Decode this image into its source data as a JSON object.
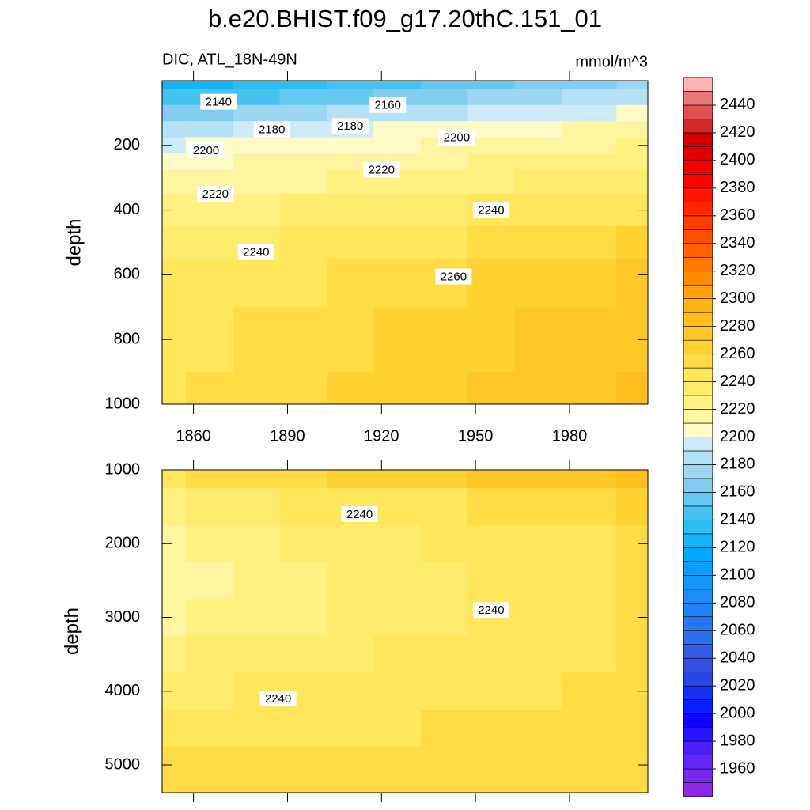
{
  "chart_data": [
    {
      "type": "contour",
      "title": "b.e20.BHIST.f09_g17.20thC.151_01",
      "subtitle_left": "DIC, ATL_18N-49N",
      "subtitle_right": "mmol/m^3",
      "ylabel": "depth",
      "y_reversed": true,
      "xlim": [
        1850,
        2005
      ],
      "ylim": [
        0,
        1000
      ],
      "xticks": [
        1860,
        1890,
        1920,
        1950,
        1980
      ],
      "yticks": [
        200,
        400,
        600,
        800,
        1000
      ],
      "x": [
        1850,
        1865,
        1880,
        1895,
        1910,
        1925,
        1940,
        1955,
        1970,
        1985,
        2005
      ],
      "y": [
        0,
        50,
        100,
        150,
        200,
        250,
        300,
        400,
        500,
        600,
        800,
        1000
      ],
      "z": [
        [
          2120,
          2125,
          2131,
          2136,
          2141,
          2146,
          2152,
          2157,
          2162,
          2167,
          2174
        ],
        [
          2140,
          2145,
          2149,
          2154,
          2158,
          2163,
          2167,
          2172,
          2176,
          2181,
          2187
        ],
        [
          2165,
          2169,
          2173,
          2176,
          2180,
          2184,
          2188,
          2191,
          2195,
          2199,
          2204
        ],
        [
          2185,
          2188,
          2191,
          2194,
          2197,
          2200,
          2203,
          2206,
          2209,
          2212,
          2216
        ],
        [
          2198,
          2200,
          2203,
          2205,
          2207,
          2209,
          2212,
          2214,
          2216,
          2218,
          2221
        ],
        [
          2205,
          2207,
          2210,
          2212,
          2214,
          2216,
          2219,
          2221,
          2223,
          2225,
          2228
        ],
        [
          2212,
          2214,
          2217,
          2219,
          2221,
          2223,
          2226,
          2228,
          2230,
          2232,
          2235
        ],
        [
          2222,
          2225,
          2227,
          2230,
          2232,
          2235,
          2237,
          2240,
          2242,
          2245,
          2248
        ],
        [
          2232,
          2235,
          2237,
          2240,
          2243,
          2246,
          2248,
          2251,
          2254,
          2256,
          2260
        ],
        [
          2240,
          2243,
          2246,
          2249,
          2252,
          2255,
          2258,
          2261,
          2264,
          2267,
          2271
        ],
        [
          2245,
          2248,
          2252,
          2255,
          2258,
          2262,
          2265,
          2268,
          2271,
          2275,
          2279
        ],
        [
          2248,
          2251,
          2255,
          2258,
          2261,
          2265,
          2268,
          2271,
          2274,
          2278,
          2282
        ]
      ],
      "contour_labels": [
        {
          "x": 1868,
          "y": 65,
          "value": 2140
        },
        {
          "x": 1922,
          "y": 75,
          "value": 2160
        },
        {
          "x": 1885,
          "y": 150,
          "value": 2180
        },
        {
          "x": 1910,
          "y": 140,
          "value": 2180
        },
        {
          "x": 1944,
          "y": 175,
          "value": 2200
        },
        {
          "x": 1864,
          "y": 215,
          "value": 2200
        },
        {
          "x": 1920,
          "y": 275,
          "value": 2220
        },
        {
          "x": 1867,
          "y": 350,
          "value": 2220
        },
        {
          "x": 1955,
          "y": 400,
          "value": 2240
        },
        {
          "x": 1880,
          "y": 530,
          "value": 2240
        },
        {
          "x": 1943,
          "y": 605,
          "value": 2260
        }
      ]
    },
    {
      "type": "contour",
      "ylabel": "depth",
      "y_reversed": true,
      "xlim": [
        1850,
        2005
      ],
      "ylim": [
        1000,
        5375
      ],
      "xticks": [
        1860,
        1890,
        1920,
        1950,
        1980
      ],
      "yticks": [
        1000,
        2000,
        3000,
        4000,
        5000
      ],
      "x": [
        1850,
        1865,
        1880,
        1895,
        1910,
        1925,
        1940,
        1955,
        1970,
        1985,
        2005
      ],
      "y": [
        1000,
        1500,
        2000,
        2500,
        3000,
        3500,
        4000,
        4500,
        5000,
        5375
      ],
      "z": [
        [
          2248,
          2251,
          2255,
          2258,
          2261,
          2265,
          2268,
          2271,
          2274,
          2278,
          2282
        ],
        [
          2228,
          2232,
          2236,
          2240,
          2243,
          2246,
          2249,
          2252,
          2255,
          2258,
          2262
        ],
        [
          2218,
          2222,
          2226,
          2230,
          2234,
          2237,
          2240,
          2243,
          2246,
          2249,
          2253
        ],
        [
          2214,
          2218,
          2222,
          2226,
          2230,
          2234,
          2237,
          2240,
          2243,
          2246,
          2250
        ],
        [
          2218,
          2221,
          2225,
          2228,
          2232,
          2235,
          2238,
          2241,
          2244,
          2247,
          2250
        ],
        [
          2228,
          2230,
          2233,
          2235,
          2238,
          2240,
          2242,
          2244,
          2246,
          2248,
          2251
        ],
        [
          2236,
          2238,
          2240,
          2241,
          2243,
          2244,
          2246,
          2247,
          2249,
          2250,
          2252
        ],
        [
          2244,
          2245,
          2246,
          2247,
          2248,
          2249,
          2250,
          2251,
          2252,
          2253,
          2255
        ],
        [
          2252,
          2252,
          2252,
          2252,
          2252,
          2252,
          2252,
          2252,
          2252,
          2252,
          2255
        ],
        [
          2256,
          2256,
          2255,
          2255,
          2254,
          2254,
          2254,
          2254,
          2254,
          2253,
          2254
        ]
      ],
      "contour_labels": [
        {
          "x": 1913,
          "y": 1600,
          "value": 2240
        },
        {
          "x": 1955,
          "y": 2900,
          "value": 2240
        },
        {
          "x": 1887,
          "y": 4100,
          "value": 2240
        }
      ]
    }
  ],
  "colorbar": {
    "lim": [
      1940,
      2460
    ],
    "ticks": [
      1960,
      1980,
      2000,
      2020,
      2040,
      2060,
      2080,
      2100,
      2120,
      2140,
      2160,
      2180,
      2200,
      2220,
      2240,
      2260,
      2280,
      2300,
      2320,
      2340,
      2360,
      2380,
      2400,
      2420,
      2440
    ],
    "colors": [
      "#8c28e6",
      "#7828f0",
      "#6428f5",
      "#4a1ef8",
      "#2814fa",
      "#1000ff",
      "#0a1eff",
      "#1432f5",
      "#2846e6",
      "#3250e1",
      "#325ae6",
      "#2d6eeb",
      "#2878f0",
      "#1e82f5",
      "#1e8cf5",
      "#1496fa",
      "#0aa0fa",
      "#00aaff",
      "#14b4f5",
      "#2dbef0",
      "#46c3f0",
      "#64c8f0",
      "#82cdf0",
      "#9bd7f0",
      "#b4e1f5",
      "#cdebf8",
      "#fffac8",
      "#fff5a0",
      "#fff082",
      "#ffeb6e",
      "#ffe65a",
      "#ffdc46",
      "#ffd232",
      "#ffc828",
      "#ffbe1e",
      "#ffb414",
      "#ffa00a",
      "#ff8c00",
      "#ff7800",
      "#ff6400",
      "#ff5000",
      "#ff3c00",
      "#ff2800",
      "#ff1400",
      "#ff0000",
      "#f00000",
      "#e10000",
      "#d20000",
      "#d22828",
      "#e15050",
      "#eb7878",
      "#ffb4b4"
    ]
  }
}
